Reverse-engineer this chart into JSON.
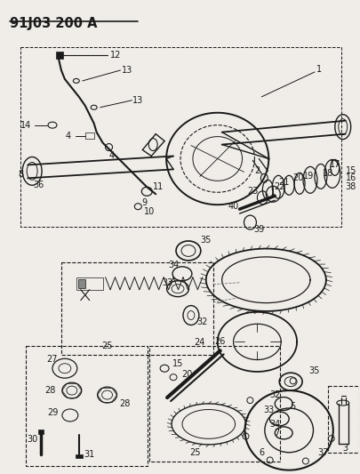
{
  "title": "91J03 200 A",
  "bg_color": "#f0ede8",
  "fig_width": 4.05,
  "fig_height": 5.33,
  "dpi": 100,
  "label_fontsize": 7.0,
  "title_fontsize": 10.5
}
